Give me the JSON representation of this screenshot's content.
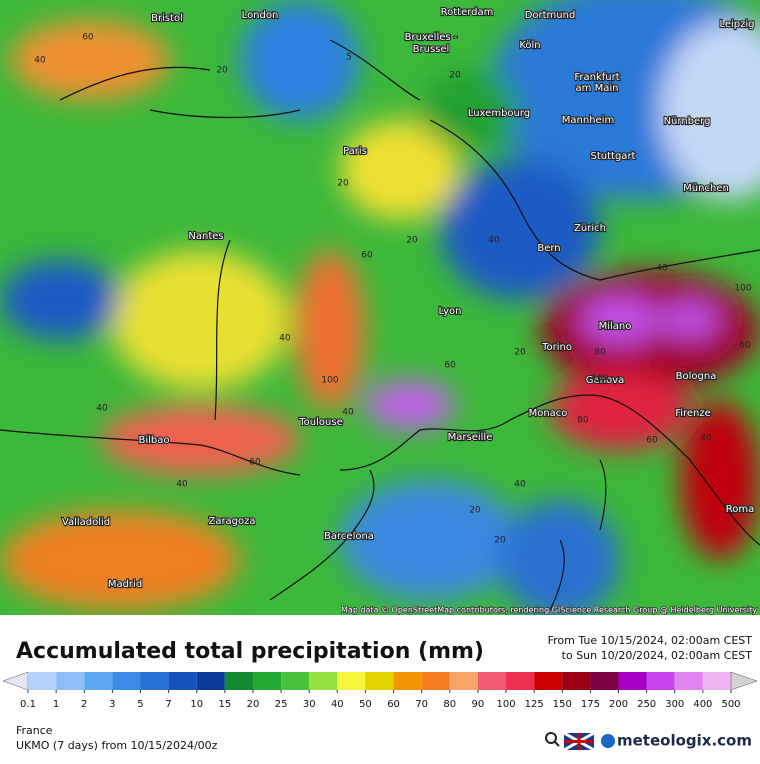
{
  "header": {
    "title": "Accumulated total precipitation (mm)",
    "from": "From Tue 10/15/2024, 02:00am CEST",
    "to": "to Sun 10/20/2024, 02:00am CEST"
  },
  "map": {
    "attribution": "Map data © OpenStreetMap contributors, rendering GIScience Research Group @ Heidelberg University",
    "cities": [
      "Bristol",
      "London",
      "Rotterdam",
      "Dortmund",
      "Leipzig",
      "Bruxelles -",
      "Brussel",
      "Köln",
      "Frankfurt",
      "am Main",
      "Luxembourg",
      "Mannheim",
      "Nürnberg",
      "Paris",
      "Stuttgart",
      "München",
      "Nantes",
      "Zürich",
      "Bern",
      "Lyon",
      "Milano",
      "Torino",
      "Bologna",
      "Genova",
      "Monaco",
      "Firenze",
      "Toulouse",
      "Marseille",
      "Bilbao",
      "Roma",
      "Zaragoza",
      "Valladolid",
      "Barcelona",
      "Madrid"
    ],
    "contour_labels": [
      "40",
      "60",
      "20",
      "5",
      "20",
      "20",
      "40",
      "60",
      "100",
      "40",
      "60",
      "40",
      "20",
      "40",
      "80",
      "40",
      "100",
      "60",
      "20",
      "80",
      "40",
      "20",
      "60",
      "40",
      "100",
      "40",
      "60",
      "20"
    ]
  },
  "legend": {
    "ticks": [
      0.1,
      1,
      2,
      3,
      5,
      7,
      10,
      15,
      20,
      25,
      30,
      40,
      50,
      60,
      70,
      80,
      90,
      100,
      125,
      150,
      175,
      200,
      250,
      300,
      400,
      500
    ],
    "colors": [
      "#e6e6f5",
      "#b4d2fa",
      "#8cbff8",
      "#5fa6f0",
      "#3a8be6",
      "#2470d6",
      "#1452bd",
      "#0c3a98",
      "#128a32",
      "#22a832",
      "#48c43c",
      "#94e040",
      "#f5f53c",
      "#e2d200",
      "#f09400",
      "#f87c22",
      "#f8a468",
      "#f25a74",
      "#ee3052",
      "#cc0000",
      "#9c0014",
      "#7c0044",
      "#a800c4",
      "#c642ea",
      "#e084f2",
      "#eeb4f4",
      "#f6e0f8",
      "#d2d2d2"
    ]
  },
  "footer": {
    "region": "France",
    "model": "UKMO (7 days) from 10/15/2024/00z",
    "brand": "meteologix.com"
  }
}
